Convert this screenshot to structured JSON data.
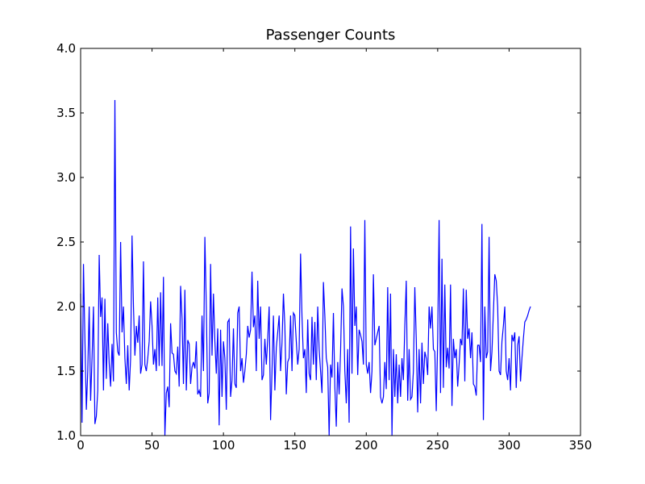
{
  "chart_data": {
    "type": "line",
    "title": "Passenger Counts",
    "xlabel": "",
    "ylabel": "",
    "xlim": [
      0,
      350
    ],
    "ylim": [
      1.0,
      4.0
    ],
    "xticks": [
      0,
      50,
      100,
      150,
      200,
      250,
      300,
      350
    ],
    "xtick_labels": [
      "0",
      "50",
      "100",
      "150",
      "200",
      "250",
      "300",
      "350"
    ],
    "yticks": [
      1.0,
      1.5,
      2.0,
      2.5,
      3.0,
      3.5,
      4.0
    ],
    "ytick_labels": [
      "1.0",
      "1.5",
      "2.0",
      "2.5",
      "3.0",
      "3.5",
      "4.0"
    ],
    "grid": false,
    "legend": "none",
    "colors": {
      "series": "#0000ff",
      "axes": "#000000",
      "background": "#ffffff"
    },
    "series": [
      {
        "x_start": 0,
        "x_step": 1,
        "y": [
          2.1,
          1.1,
          2.33,
          1.75,
          1.2,
          1.5,
          2.0,
          1.27,
          1.6,
          2.0,
          1.09,
          1.15,
          1.35,
          2.4,
          1.92,
          2.07,
          1.35,
          2.06,
          1.44,
          1.87,
          1.56,
          1.38,
          1.71,
          1.42,
          3.6,
          1.8,
          1.65,
          1.62,
          2.5,
          1.8,
          2.0,
          1.6,
          1.4,
          1.7,
          1.35,
          1.6,
          2.55,
          2.0,
          1.62,
          1.85,
          1.72,
          1.93,
          1.48,
          1.55,
          2.35,
          1.55,
          1.5,
          1.6,
          1.73,
          2.04,
          1.85,
          1.55,
          1.67,
          1.5,
          2.07,
          1.54,
          2.11,
          1.54,
          2.23,
          1.0,
          1.33,
          1.38,
          1.22,
          1.87,
          1.64,
          1.63,
          1.5,
          1.48,
          1.69,
          1.38,
          2.16,
          1.91,
          1.4,
          2.13,
          1.35,
          1.74,
          1.71,
          1.4,
          1.53,
          1.57,
          1.52,
          1.73,
          1.32,
          1.35,
          1.3,
          1.93,
          1.5,
          2.54,
          2.0,
          1.25,
          1.33,
          2.33,
          1.62,
          2.1,
          1.73,
          1.48,
          1.83,
          1.08,
          1.82,
          1.3,
          1.73,
          1.6,
          1.2,
          1.88,
          1.9,
          1.3,
          1.43,
          1.83,
          1.4,
          1.37,
          1.95,
          2.0,
          1.5,
          1.6,
          1.41,
          1.5,
          1.63,
          1.85,
          1.76,
          1.82,
          2.27,
          1.84,
          1.93,
          1.5,
          2.2,
          1.75,
          2.0,
          1.43,
          1.47,
          1.75,
          1.55,
          1.75,
          2.0,
          1.12,
          1.5,
          1.93,
          1.35,
          1.68,
          1.8,
          1.93,
          1.5,
          1.72,
          2.1,
          1.85,
          1.32,
          1.57,
          1.6,
          1.93,
          1.5,
          1.95,
          1.93,
          1.73,
          1.55,
          1.67,
          2.41,
          1.92,
          1.6,
          1.67,
          1.33,
          1.9,
          1.48,
          1.43,
          1.92,
          1.55,
          1.88,
          1.43,
          2.0,
          1.67,
          1.5,
          1.33,
          2.19,
          1.93,
          1.6,
          1.53,
          1.0,
          1.55,
          1.45,
          1.95,
          1.38,
          1.07,
          1.57,
          1.32,
          1.65,
          2.14,
          2.0,
          1.5,
          1.25,
          1.67,
          1.1,
          2.62,
          1.48,
          2.45,
          1.85,
          2.0,
          1.47,
          1.82,
          1.78,
          1.73,
          1.55,
          2.67,
          1.55,
          1.48,
          1.57,
          1.33,
          1.5,
          2.25,
          1.7,
          1.75,
          1.8,
          1.85,
          1.3,
          1.25,
          1.3,
          1.57,
          1.36,
          2.15,
          1.43,
          2.1,
          1.0,
          1.67,
          1.3,
          1.63,
          1.25,
          1.55,
          1.3,
          1.6,
          1.43,
          1.85,
          2.2,
          1.27,
          1.67,
          1.28,
          1.3,
          1.5,
          2.15,
          1.75,
          1.18,
          1.67,
          1.25,
          1.72,
          1.4,
          1.65,
          1.6,
          1.47,
          2.0,
          1.83,
          2.0,
          1.67,
          1.65,
          1.19,
          1.75,
          2.67,
          1.33,
          2.37,
          1.37,
          2.17,
          1.53,
          1.68,
          1.52,
          2.17,
          1.23,
          1.75,
          1.6,
          1.67,
          1.38,
          1.55,
          1.75,
          1.7,
          2.14,
          1.42,
          2.13,
          1.75,
          1.83,
          1.6,
          1.8,
          1.4,
          1.38,
          1.31,
          1.7,
          1.7,
          1.57,
          2.64,
          1.12,
          2.0,
          1.6,
          1.65,
          2.54,
          1.5,
          1.65,
          1.95,
          2.25,
          2.2,
          2.0,
          1.5,
          1.47,
          1.73,
          1.85,
          2.0,
          1.5,
          1.43,
          1.6,
          1.35,
          1.78,
          1.73,
          1.8,
          1.37,
          1.7,
          1.77,
          1.42,
          1.6,
          1.75,
          1.88,
          1.9,
          1.93,
          1.97,
          2.0
        ]
      }
    ]
  }
}
